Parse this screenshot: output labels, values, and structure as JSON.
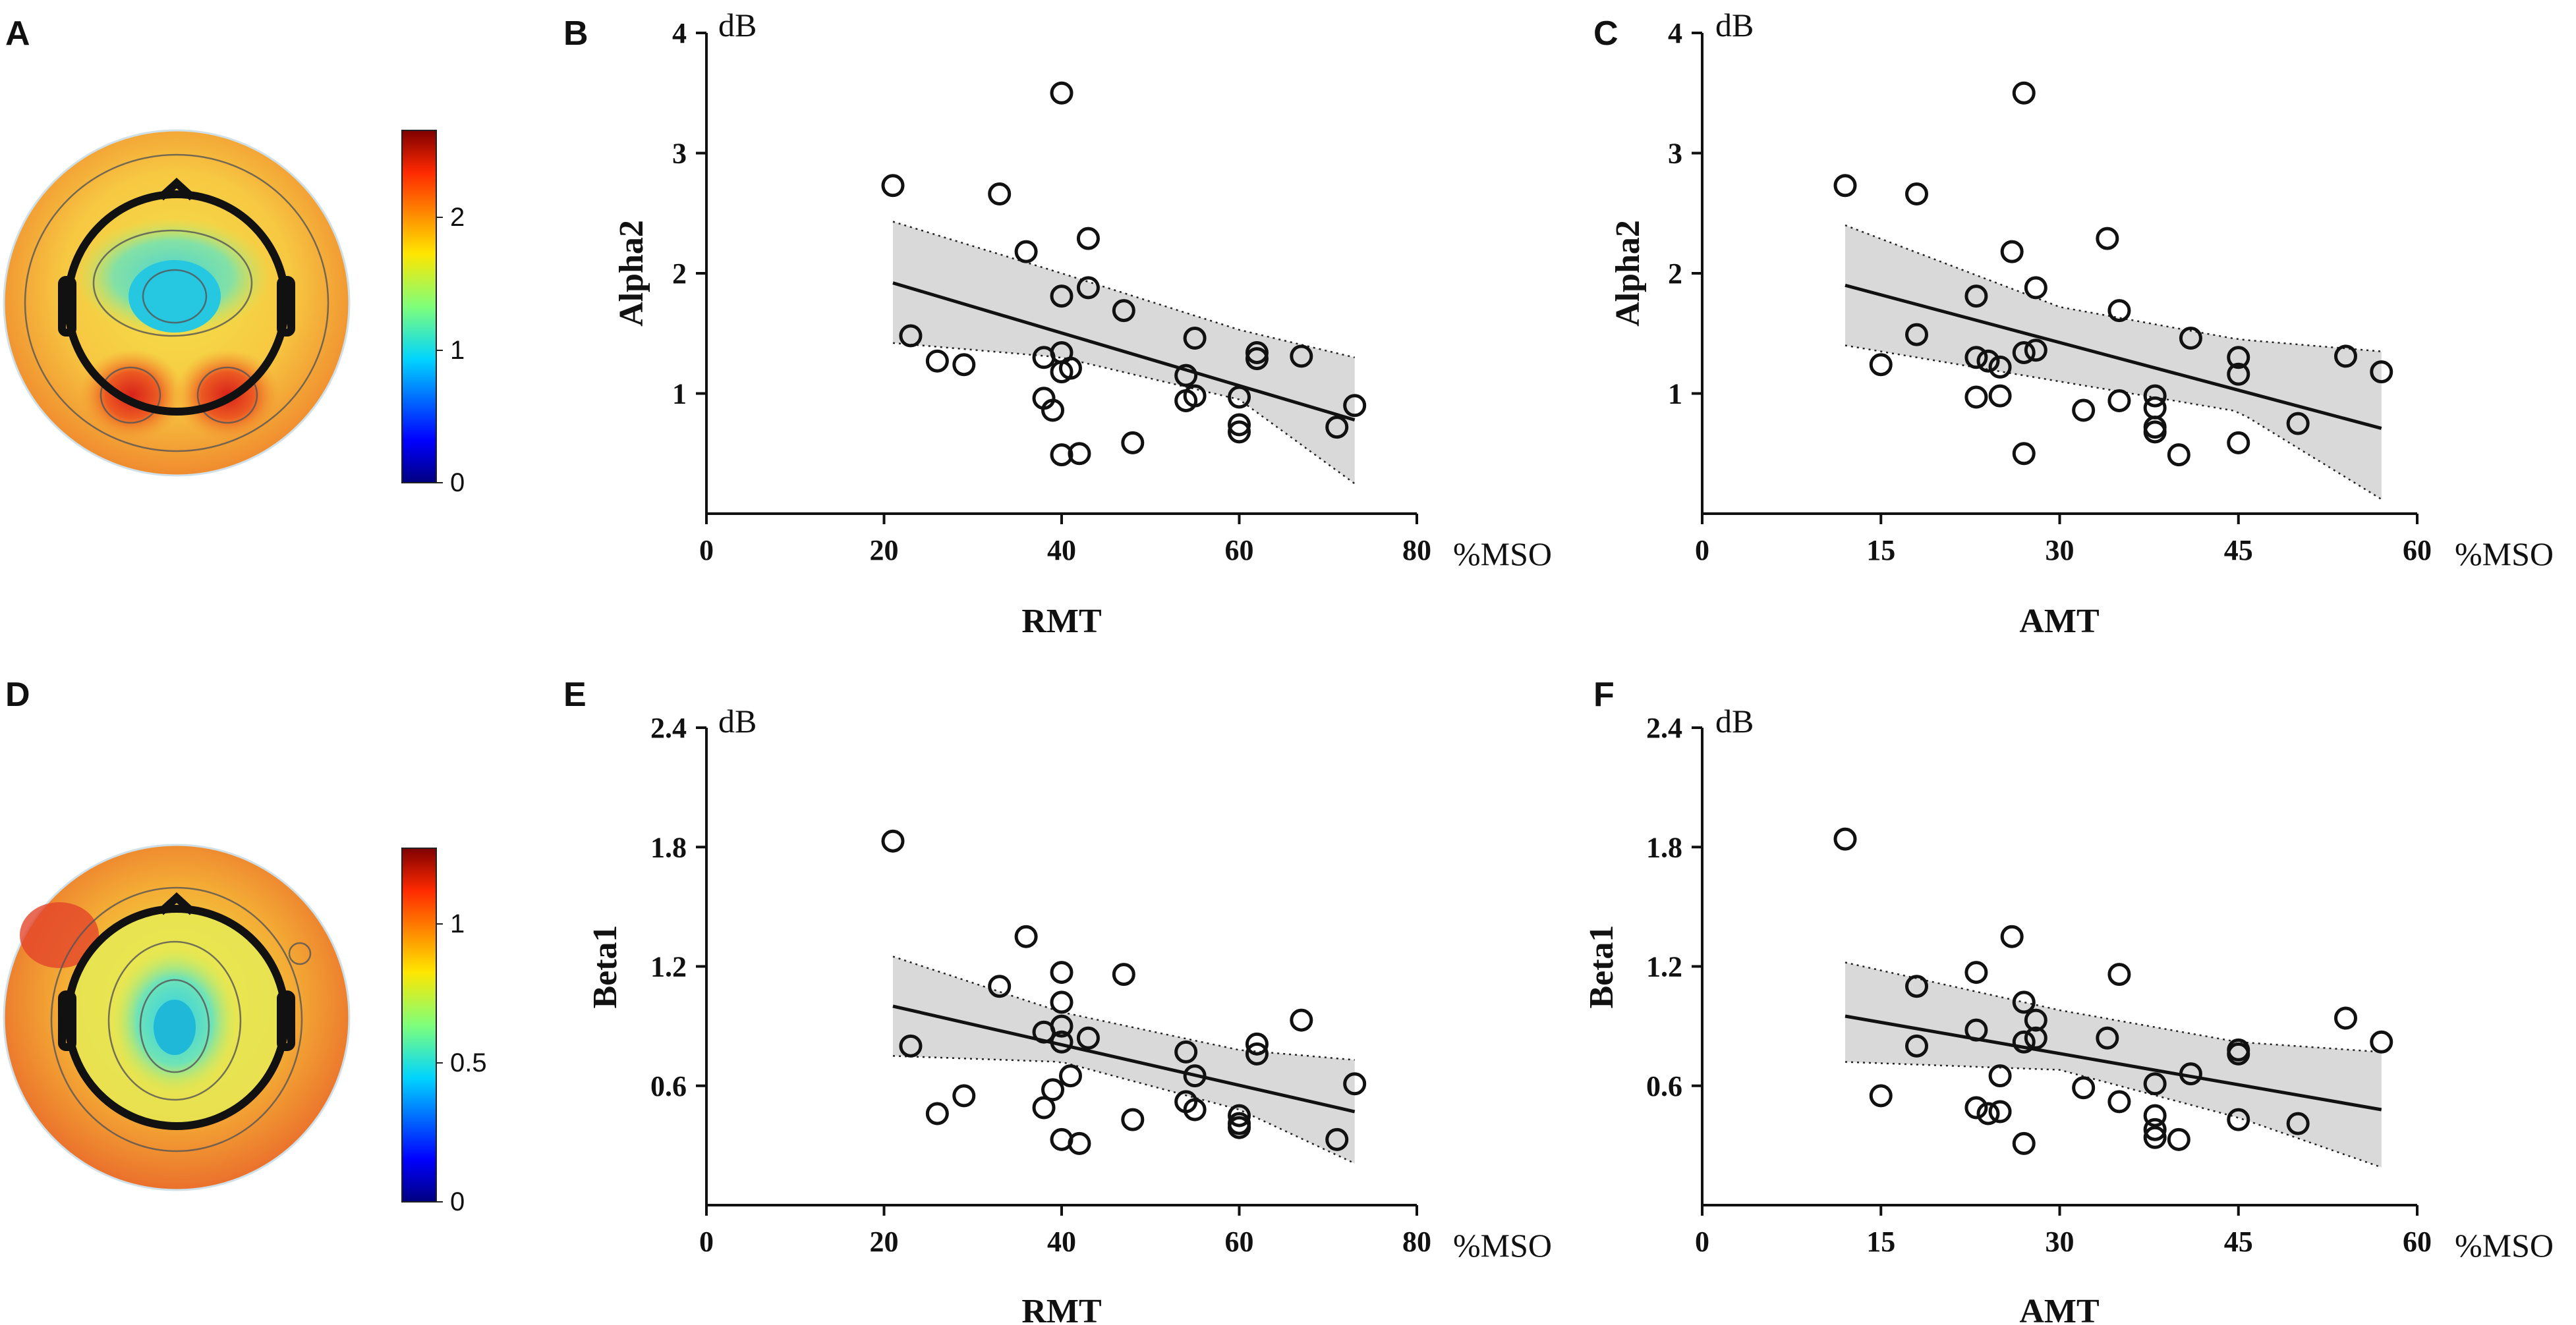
{
  "panels": {
    "A": {
      "letter": "A",
      "colorbar_ticks": [
        "2",
        "1",
        "0"
      ]
    },
    "D": {
      "letter": "D",
      "colorbar_ticks": [
        "1",
        "0.5",
        "0"
      ]
    }
  },
  "chart_data": [
    {
      "id": "B",
      "letter": "B",
      "type": "scatter",
      "xlabel": "RMT",
      "ylabel": "Alpha2",
      "x_unit": "%MSO",
      "y_unit": "dB",
      "xlim": [
        0,
        80
      ],
      "ylim": [
        0,
        4
      ],
      "xticks": [
        0,
        20,
        40,
        60,
        80
      ],
      "yticks": [
        1,
        2,
        3,
        4
      ],
      "xtick_labels": [
        "0",
        "20",
        "40",
        "60",
        "80"
      ],
      "ytick_labels": [
        "1",
        "2",
        "3",
        "4"
      ],
      "points": [
        [
          21,
          2.73
        ],
        [
          23,
          1.48
        ],
        [
          26,
          1.27
        ],
        [
          29,
          1.24
        ],
        [
          33,
          2.66
        ],
        [
          36,
          2.18
        ],
        [
          38,
          1.3
        ],
        [
          38,
          0.96
        ],
        [
          39,
          0.86
        ],
        [
          40,
          3.5
        ],
        [
          40,
          1.81
        ],
        [
          40,
          1.34
        ],
        [
          40,
          1.18
        ],
        [
          40,
          0.49
        ],
        [
          41,
          1.21
        ],
        [
          42,
          0.5
        ],
        [
          43,
          2.29
        ],
        [
          43,
          1.88
        ],
        [
          47,
          1.69
        ],
        [
          48,
          0.59
        ],
        [
          54,
          1.15
        ],
        [
          54,
          0.94
        ],
        [
          55,
          1.46
        ],
        [
          55,
          0.98
        ],
        [
          60,
          0.97
        ],
        [
          60,
          0.74
        ],
        [
          60,
          0.68
        ],
        [
          62,
          1.34
        ],
        [
          62,
          1.29
        ],
        [
          67,
          1.31
        ],
        [
          71,
          0.72
        ],
        [
          73,
          0.9
        ]
      ],
      "fit": {
        "x": [
          21,
          73
        ],
        "y": [
          1.92,
          0.78
        ]
      },
      "ci_upper": [
        [
          21,
          2.43
        ],
        [
          40,
          2.0
        ],
        [
          60,
          1.53
        ],
        [
          73,
          1.3
        ]
      ],
      "ci_lower": [
        [
          21,
          1.42
        ],
        [
          40,
          1.3
        ],
        [
          60,
          0.95
        ],
        [
          73,
          0.25
        ]
      ]
    },
    {
      "id": "C",
      "letter": "C",
      "type": "scatter",
      "xlabel": "AMT",
      "ylabel": "Alpha2",
      "x_unit": "%MSO",
      "y_unit": "dB",
      "xlim": [
        0,
        60
      ],
      "ylim": [
        0,
        4
      ],
      "xticks": [
        0,
        15,
        30,
        45,
        60
      ],
      "yticks": [
        1,
        2,
        3,
        4
      ],
      "xtick_labels": [
        "0",
        "15",
        "30",
        "45",
        "60"
      ],
      "ytick_labels": [
        "1",
        "2",
        "3",
        "4"
      ],
      "points": [
        [
          12,
          2.73
        ],
        [
          15,
          1.24
        ],
        [
          18,
          2.66
        ],
        [
          18,
          1.49
        ],
        [
          23,
          1.81
        ],
        [
          23,
          1.3
        ],
        [
          23,
          0.97
        ],
        [
          24,
          1.27
        ],
        [
          25,
          1.22
        ],
        [
          25,
          0.98
        ],
        [
          26,
          2.18
        ],
        [
          27,
          3.5
        ],
        [
          27,
          1.34
        ],
        [
          27,
          0.5
        ],
        [
          28,
          1.88
        ],
        [
          28,
          1.36
        ],
        [
          32,
          0.86
        ],
        [
          34,
          2.29
        ],
        [
          35,
          1.69
        ],
        [
          35,
          0.94
        ],
        [
          38,
          0.98
        ],
        [
          38,
          0.88
        ],
        [
          38,
          0.72
        ],
        [
          38,
          0.68
        ],
        [
          40,
          0.49
        ],
        [
          41,
          1.46
        ],
        [
          45,
          1.3
        ],
        [
          45,
          1.16
        ],
        [
          45,
          0.59
        ],
        [
          50,
          0.75
        ],
        [
          54,
          1.31
        ],
        [
          57,
          1.18
        ]
      ],
      "fit": {
        "x": [
          12,
          57
        ],
        "y": [
          1.9,
          0.71
        ]
      },
      "ci_upper": [
        [
          12,
          2.4
        ],
        [
          30,
          1.72
        ],
        [
          45,
          1.45
        ],
        [
          57,
          1.35
        ]
      ],
      "ci_lower": [
        [
          12,
          1.4
        ],
        [
          30,
          1.1
        ],
        [
          45,
          0.85
        ],
        [
          57,
          0.12
        ]
      ]
    },
    {
      "id": "E",
      "letter": "E",
      "type": "scatter",
      "xlabel": "RMT",
      "ylabel": "Beta1",
      "x_unit": "%MSO",
      "y_unit": "dB",
      "xlim": [
        0,
        80
      ],
      "ylim": [
        0,
        2.4
      ],
      "xticks": [
        0,
        20,
        40,
        60,
        80
      ],
      "yticks": [
        0.6,
        1.2,
        1.8,
        2.4
      ],
      "xtick_labels": [
        "0",
        "20",
        "40",
        "60",
        "80"
      ],
      "ytick_labels": [
        "0.6",
        "1.2",
        "1.8",
        "2.4"
      ],
      "points": [
        [
          21,
          1.83
        ],
        [
          23,
          0.8
        ],
        [
          26,
          0.46
        ],
        [
          29,
          0.55
        ],
        [
          33,
          1.1
        ],
        [
          36,
          1.35
        ],
        [
          38,
          0.87
        ],
        [
          38,
          0.49
        ],
        [
          39,
          0.58
        ],
        [
          40,
          1.17
        ],
        [
          40,
          1.02
        ],
        [
          40,
          0.9
        ],
        [
          40,
          0.82
        ],
        [
          40,
          0.33
        ],
        [
          41,
          0.65
        ],
        [
          42,
          0.31
        ],
        [
          43,
          0.84
        ],
        [
          47,
          1.16
        ],
        [
          48,
          0.43
        ],
        [
          54,
          0.77
        ],
        [
          54,
          0.52
        ],
        [
          55,
          0.65
        ],
        [
          55,
          0.48
        ],
        [
          60,
          0.45
        ],
        [
          60,
          0.41
        ],
        [
          60,
          0.39
        ],
        [
          62,
          0.81
        ],
        [
          62,
          0.76
        ],
        [
          67,
          0.93
        ],
        [
          71,
          0.33
        ],
        [
          73,
          0.61
        ]
      ],
      "fit": {
        "x": [
          21,
          73
        ],
        "y": [
          1.0,
          0.47
        ]
      },
      "ci_upper": [
        [
          21,
          1.25
        ],
        [
          40,
          0.97
        ],
        [
          60,
          0.78
        ],
        [
          73,
          0.73
        ]
      ],
      "ci_lower": [
        [
          21,
          0.75
        ],
        [
          40,
          0.72
        ],
        [
          60,
          0.48
        ],
        [
          73,
          0.21
        ]
      ]
    },
    {
      "id": "F",
      "letter": "F",
      "type": "scatter",
      "xlabel": "AMT",
      "ylabel": "Beta1",
      "x_unit": "%MSO",
      "y_unit": "dB",
      "xlim": [
        0,
        60
      ],
      "ylim": [
        0,
        2.4
      ],
      "xticks": [
        0,
        15,
        30,
        45,
        60
      ],
      "yticks": [
        0.6,
        1.2,
        1.8,
        2.4
      ],
      "xtick_labels": [
        "0",
        "15",
        "30",
        "45",
        "60"
      ],
      "ytick_labels": [
        "0.6",
        "1.2",
        "1.8",
        "2.4"
      ],
      "points": [
        [
          12,
          1.84
        ],
        [
          15,
          0.55
        ],
        [
          18,
          1.1
        ],
        [
          18,
          0.8
        ],
        [
          23,
          1.17
        ],
        [
          23,
          0.88
        ],
        [
          23,
          0.49
        ],
        [
          24,
          0.46
        ],
        [
          25,
          0.65
        ],
        [
          25,
          0.47
        ],
        [
          26,
          1.35
        ],
        [
          27,
          1.02
        ],
        [
          27,
          0.82
        ],
        [
          27,
          0.31
        ],
        [
          28,
          0.93
        ],
        [
          28,
          0.84
        ],
        [
          32,
          0.59
        ],
        [
          34,
          0.84
        ],
        [
          35,
          1.16
        ],
        [
          35,
          0.52
        ],
        [
          38,
          0.61
        ],
        [
          38,
          0.45
        ],
        [
          38,
          0.38
        ],
        [
          38,
          0.34
        ],
        [
          40,
          0.33
        ],
        [
          41,
          0.66
        ],
        [
          45,
          0.78
        ],
        [
          45,
          0.76
        ],
        [
          45,
          0.43
        ],
        [
          50,
          0.41
        ],
        [
          54,
          0.94
        ],
        [
          57,
          0.82
        ]
      ],
      "fit": {
        "x": [
          12,
          57
        ],
        "y": [
          0.95,
          0.48
        ]
      },
      "ci_upper": [
        [
          12,
          1.22
        ],
        [
          30,
          0.98
        ],
        [
          45,
          0.82
        ],
        [
          57,
          0.77
        ]
      ],
      "ci_lower": [
        [
          12,
          0.72
        ],
        [
          30,
          0.68
        ],
        [
          45,
          0.44
        ],
        [
          57,
          0.19
        ]
      ]
    }
  ]
}
